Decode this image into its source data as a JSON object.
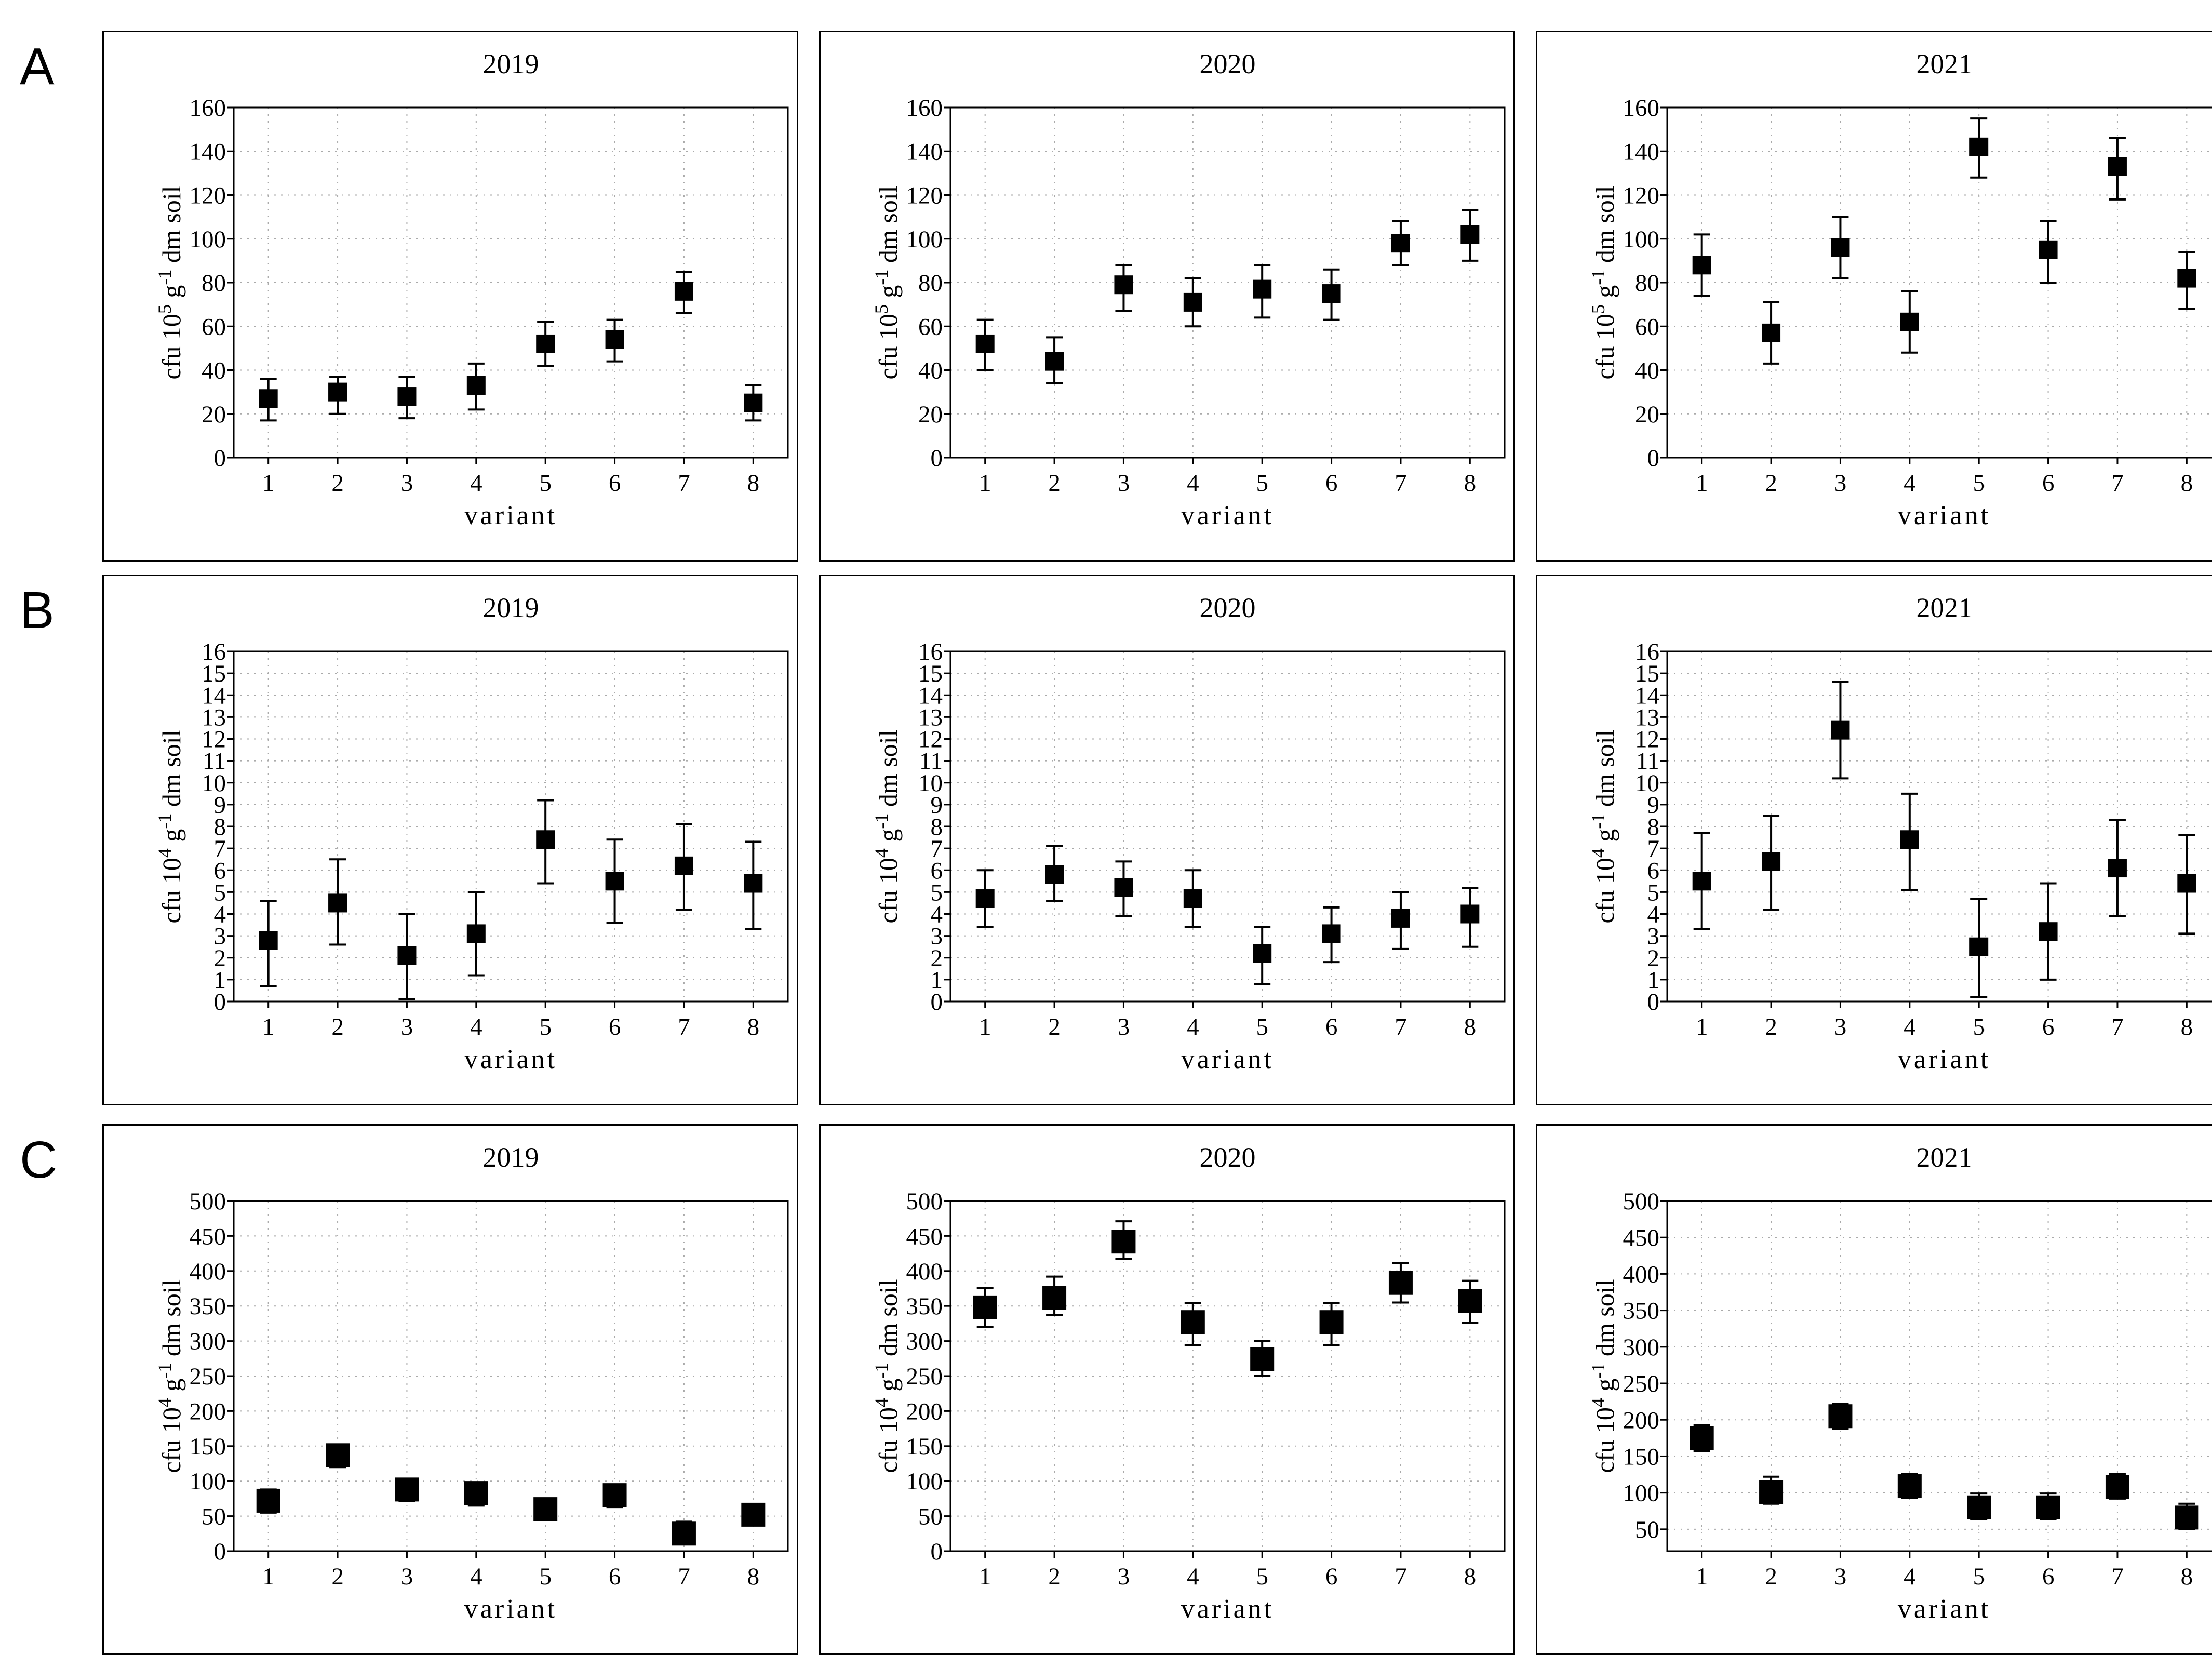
{
  "page": {
    "background": "#ffffff",
    "ink": "#000000",
    "grid_color": "#aaaaaa"
  },
  "figure": {
    "row_labels": [
      "A",
      "B",
      "C"
    ],
    "col_titles": [
      "2019",
      "2020",
      "2021"
    ],
    "xlabel": "variant"
  },
  "chart_data": [
    {
      "id": "A-2019",
      "row": "A",
      "type": "scatter",
      "title": "2019",
      "xlabel": "variant",
      "ylabel": {
        "pre": "cfu 10",
        "sup1": "5",
        "mid": " g",
        "sup2": "-1",
        "post": " dm soil"
      },
      "ylim": [
        0,
        160
      ],
      "ytick_start": 0,
      "ytick_step": 20,
      "grid": true,
      "legend": "none",
      "marker": "square",
      "marker_px": 36,
      "color": "#000000",
      "categories": [
        1,
        2,
        3,
        4,
        5,
        6,
        7,
        8
      ],
      "values": [
        27,
        30,
        28,
        33,
        52,
        54,
        76,
        25
      ],
      "err_low": [
        17,
        20,
        18,
        22,
        42,
        44,
        66,
        17
      ],
      "err_high": [
        36,
        37,
        37,
        43,
        62,
        63,
        85,
        33
      ]
    },
    {
      "id": "A-2020",
      "row": "A",
      "type": "scatter",
      "title": "2020",
      "xlabel": "variant",
      "ylabel": {
        "pre": "cfu 10",
        "sup1": "5",
        "mid": " g",
        "sup2": "-1",
        "post": " dm soil"
      },
      "ylim": [
        0,
        160
      ],
      "ytick_start": 0,
      "ytick_step": 20,
      "grid": true,
      "legend": "none",
      "marker": "square",
      "marker_px": 36,
      "color": "#000000",
      "categories": [
        1,
        2,
        3,
        4,
        5,
        6,
        7,
        8
      ],
      "values": [
        52,
        44,
        79,
        71,
        77,
        75,
        98,
        102
      ],
      "err_low": [
        40,
        34,
        67,
        60,
        64,
        63,
        88,
        90
      ],
      "err_high": [
        63,
        55,
        88,
        82,
        88,
        86,
        108,
        113
      ]
    },
    {
      "id": "A-2021",
      "row": "A",
      "type": "scatter",
      "title": "2021",
      "xlabel": "variant",
      "ylabel": {
        "pre": "cfu 10",
        "sup1": "5",
        "mid": " g",
        "sup2": "-1",
        "post": " dm soil"
      },
      "ylim": [
        0,
        160
      ],
      "ytick_start": 0,
      "ytick_step": 20,
      "grid": true,
      "legend": "none",
      "marker": "square",
      "marker_px": 36,
      "color": "#000000",
      "categories": [
        1,
        2,
        3,
        4,
        5,
        6,
        7,
        8
      ],
      "values": [
        88,
        57,
        96,
        62,
        142,
        95,
        133,
        82
      ],
      "err_low": [
        74,
        43,
        82,
        48,
        128,
        80,
        118,
        68
      ],
      "err_high": [
        102,
        71,
        110,
        76,
        155,
        108,
        146,
        94
      ]
    },
    {
      "id": "B-2019",
      "row": "B",
      "type": "scatter",
      "title": "2019",
      "xlabel": "variant",
      "ylabel": {
        "pre": "cfu 10",
        "sup1": "4",
        "mid": " g",
        "sup2": "-1",
        "post": " dm soil"
      },
      "ylim": [
        0,
        16
      ],
      "ytick_start": 0,
      "ytick_step": 1,
      "grid": true,
      "legend": "none",
      "marker": "square",
      "marker_px": 36,
      "color": "#000000",
      "categories": [
        1,
        2,
        3,
        4,
        5,
        6,
        7,
        8
      ],
      "values": [
        2.8,
        4.5,
        2.1,
        3.1,
        7.4,
        5.5,
        6.2,
        5.4
      ],
      "err_low": [
        0.7,
        2.6,
        0.1,
        1.2,
        5.4,
        3.6,
        4.2,
        3.3
      ],
      "err_high": [
        4.6,
        6.5,
        4.0,
        5.0,
        9.2,
        7.4,
        8.1,
        7.3
      ]
    },
    {
      "id": "B-2020",
      "row": "B",
      "type": "scatter",
      "title": "2020",
      "xlabel": "variant",
      "ylabel": {
        "pre": "cfu 10",
        "sup1": "4",
        "mid": " g",
        "sup2": "-1",
        "post": " dm soil"
      },
      "ylim": [
        0,
        16
      ],
      "ytick_start": 0,
      "ytick_step": 1,
      "grid": true,
      "legend": "none",
      "marker": "square",
      "marker_px": 36,
      "color": "#000000",
      "categories": [
        1,
        2,
        3,
        4,
        5,
        6,
        7,
        8
      ],
      "values": [
        4.7,
        5.8,
        5.2,
        4.7,
        2.2,
        3.1,
        3.8,
        4.0
      ],
      "err_low": [
        3.4,
        4.6,
        3.9,
        3.4,
        0.8,
        1.8,
        2.4,
        2.5
      ],
      "err_high": [
        6.0,
        7.1,
        6.4,
        6.0,
        3.4,
        4.3,
        5.0,
        5.2
      ]
    },
    {
      "id": "B-2021",
      "row": "B",
      "type": "scatter",
      "title": "2021",
      "xlabel": "variant",
      "ylabel": {
        "pre": "cfu 10",
        "sup1": "4",
        "mid": " g",
        "sup2": "-1",
        "post": " dm soil"
      },
      "ylim": [
        0,
        16
      ],
      "ytick_start": 0,
      "ytick_step": 1,
      "grid": true,
      "legend": "none",
      "marker": "square",
      "marker_px": 36,
      "color": "#000000",
      "categories": [
        1,
        2,
        3,
        4,
        5,
        6,
        7,
        8
      ],
      "values": [
        5.5,
        6.4,
        12.4,
        7.4,
        2.5,
        3.2,
        6.1,
        5.4
      ],
      "err_low": [
        3.3,
        4.2,
        10.2,
        5.1,
        0.2,
        1.0,
        3.9,
        3.1
      ],
      "err_high": [
        7.7,
        8.5,
        14.6,
        9.5,
        4.7,
        5.4,
        8.3,
        7.6
      ]
    },
    {
      "id": "C-2019",
      "row": "C",
      "type": "scatter",
      "title": "2019",
      "xlabel": "variant",
      "ylabel": {
        "pre": "cfu 10",
        "sup1": "4",
        "mid": " g",
        "sup2": "-1",
        "post": " dm soil"
      },
      "ylim": [
        0,
        500
      ],
      "ytick_start": 0,
      "ytick_step": 50,
      "grid": true,
      "legend": "none",
      "marker": "square",
      "marker_px": 46,
      "color": "#000000",
      "categories": [
        1,
        2,
        3,
        4,
        5,
        6,
        7,
        8
      ],
      "values": [
        72,
        137,
        88,
        83,
        60,
        80,
        25,
        52
      ],
      "err_low": [
        55,
        120,
        72,
        65,
        45,
        63,
        10,
        38
      ],
      "err_high": [
        88,
        152,
        103,
        98,
        75,
        95,
        42,
        67
      ]
    },
    {
      "id": "C-2020",
      "row": "C",
      "type": "scatter",
      "title": "2020",
      "xlabel": "variant",
      "ylabel": {
        "pre": "cfu 10",
        "sup1": "4",
        "mid": " g",
        "sup2": "-1",
        "post": " dm soil"
      },
      "ylim": [
        0,
        500
      ],
      "ytick_start": 0,
      "ytick_step": 50,
      "grid": true,
      "legend": "none",
      "marker": "square",
      "marker_px": 46,
      "color": "#000000",
      "categories": [
        1,
        2,
        3,
        4,
        5,
        6,
        7,
        8
      ],
      "values": [
        348,
        362,
        442,
        327,
        274,
        327,
        383,
        357
      ],
      "err_low": [
        320,
        337,
        417,
        294,
        250,
        294,
        355,
        326
      ],
      "err_high": [
        376,
        392,
        471,
        354,
        300,
        354,
        411,
        386
      ]
    },
    {
      "id": "C-2021",
      "row": "C",
      "type": "scatter",
      "title": "2021",
      "xlabel": "variant",
      "ylabel": {
        "pre": "cfu 10",
        "sup1": "4",
        "mid": " g",
        "sup2": "-1",
        "post": " dm soil"
      },
      "ylim": [
        20,
        500
      ],
      "ytick_start": 50,
      "ytick_step": 50,
      "grid": true,
      "legend": "none",
      "marker": "square",
      "marker_px": 46,
      "color": "#000000",
      "categories": [
        1,
        2,
        3,
        4,
        5,
        6,
        7,
        8
      ],
      "values": [
        175,
        101,
        205,
        109,
        80,
        80,
        108,
        66
      ],
      "err_low": [
        157,
        85,
        188,
        93,
        64,
        64,
        92,
        50
      ],
      "err_high": [
        193,
        122,
        222,
        126,
        99,
        99,
        126,
        85
      ]
    }
  ]
}
